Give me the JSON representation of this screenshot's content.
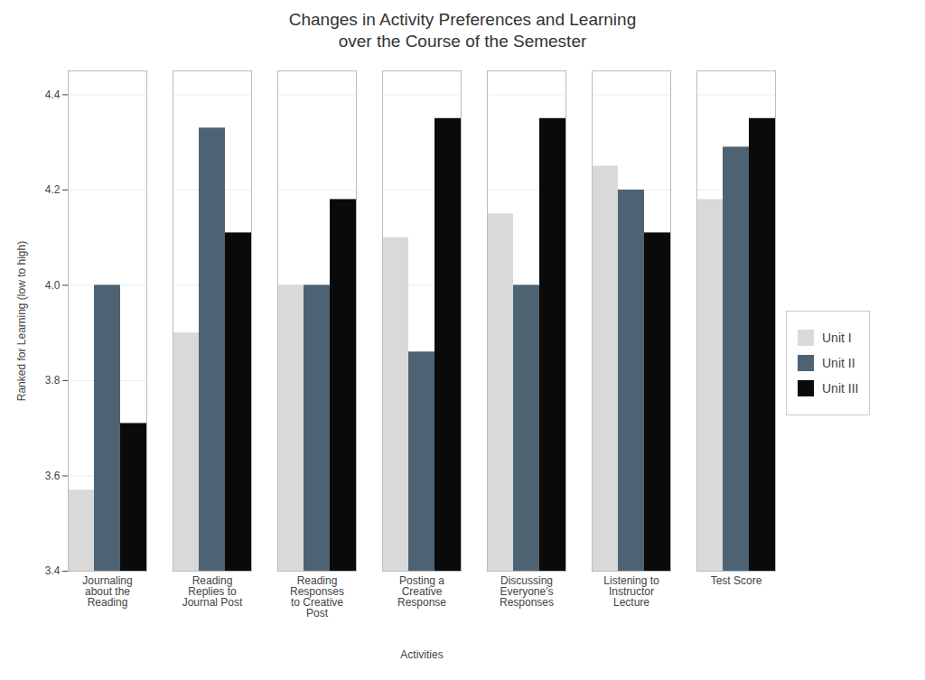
{
  "chart_data": {
    "type": "bar",
    "title": "Changes in Activity Preferences and Learning\nover the Course of the Semester",
    "xlabel": "Activities",
    "ylabel": "Ranked for Learning (low to high)",
    "categories": [
      "Journaling\nabout the\nReading",
      "Reading\nReplies to\nJournal Post",
      "Reading\nResponses\nto Creative\nPost",
      "Posting a\nCreative\nResponse",
      "Discussing\nEveryone's\nResponses",
      "Listening to\nInstructor\nLecture",
      "Test Score"
    ],
    "series": [
      {
        "name": "Unit I",
        "color": "#d9d9d9",
        "values": [
          3.57,
          3.9,
          4.0,
          4.1,
          4.15,
          4.25,
          4.18
        ]
      },
      {
        "name": "Unit II",
        "color": "#4d6373",
        "values": [
          4.0,
          4.33,
          4.0,
          3.86,
          4.0,
          4.2,
          4.29
        ]
      },
      {
        "name": "Unit III",
        "color": "#0a0a0a",
        "values": [
          3.71,
          4.11,
          4.18,
          4.35,
          4.35,
          4.11,
          4.35
        ]
      }
    ],
    "ylim": [
      3.4,
      4.45
    ],
    "yticks": [
      3.4,
      3.6,
      3.8,
      {
        "value": 4.0,
        "label": "4.0"
      },
      4.2,
      4.4
    ],
    "grid": true,
    "legend": "right"
  }
}
